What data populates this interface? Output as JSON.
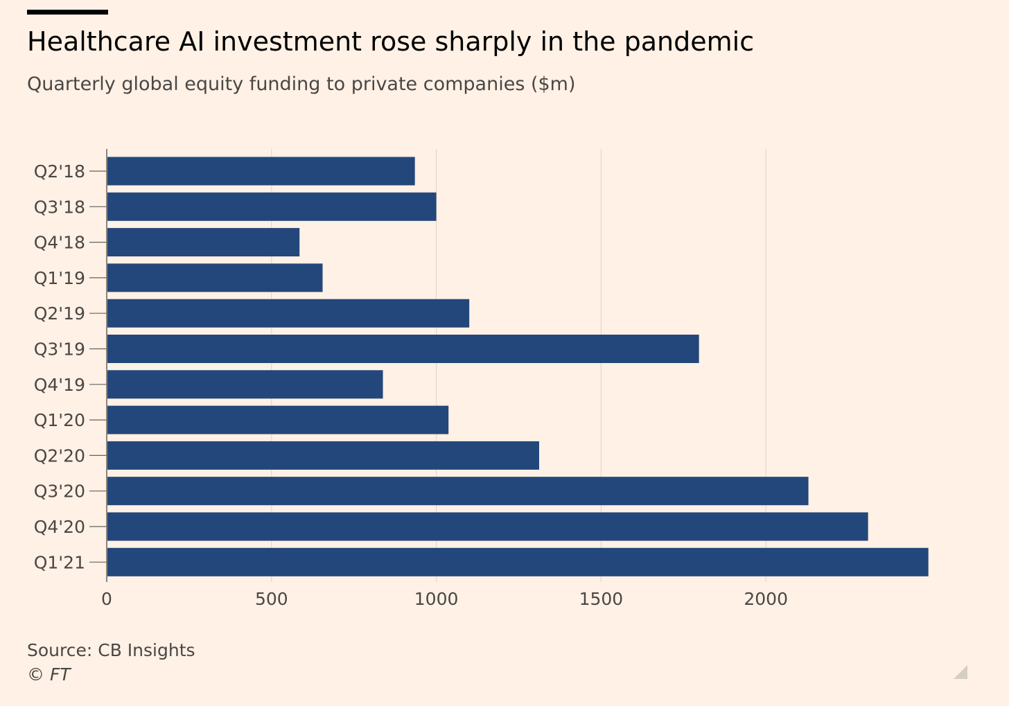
{
  "chart_data": {
    "type": "bar",
    "orientation": "horizontal",
    "title": "Healthcare AI investment rose sharply in the pandemic",
    "subtitle": "Quarterly global equity funding to private companies ($m)",
    "categories": [
      "Q2'18",
      "Q3'18",
      "Q4'18",
      "Q1'19",
      "Q2'19",
      "Q3'19",
      "Q4'19",
      "Q1'20",
      "Q2'20",
      "Q3'20",
      "Q4'20",
      "Q1'21"
    ],
    "values": [
      935,
      1000,
      585,
      655,
      1100,
      1797,
      838,
      1037,
      1312,
      2129,
      2310,
      2493
    ],
    "x_ticks": [
      "0",
      "500",
      "1000",
      "1500",
      "2000"
    ],
    "xlim": [
      0,
      2500
    ],
    "grid": true,
    "bar_color": "#23477a",
    "source": "Source: CB Insights",
    "copyright": "© FT"
  }
}
